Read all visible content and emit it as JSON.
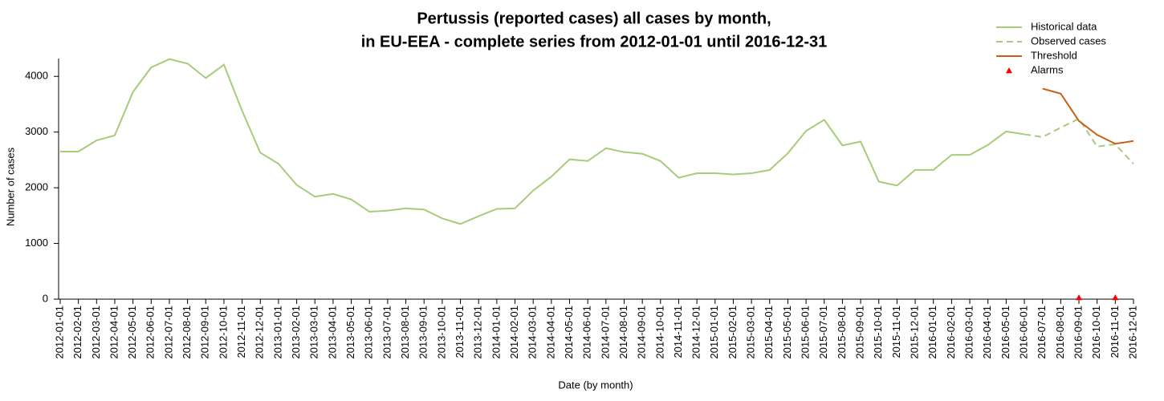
{
  "chart_data": {
    "type": "line",
    "title": [
      "Pertussis (reported cases) all cases by month,",
      "in EU-EEA - complete series from 2012-01-01 until 2016-12-31"
    ],
    "xlabel": "Date (by month)",
    "ylabel": "Number of cases",
    "categories": [
      "2012-01-01",
      "2012-02-01",
      "2012-03-01",
      "2012-04-01",
      "2012-05-01",
      "2012-06-01",
      "2012-07-01",
      "2012-08-01",
      "2012-09-01",
      "2012-10-01",
      "2012-11-01",
      "2012-12-01",
      "2013-01-01",
      "2013-02-01",
      "2013-03-01",
      "2013-04-01",
      "2013-05-01",
      "2013-06-01",
      "2013-07-01",
      "2013-08-01",
      "2013-09-01",
      "2013-10-01",
      "2013-11-01",
      "2013-12-01",
      "2014-01-01",
      "2014-02-01",
      "2014-03-01",
      "2014-04-01",
      "2014-05-01",
      "2014-06-01",
      "2014-07-01",
      "2014-08-01",
      "2014-09-01",
      "2014-10-01",
      "2014-11-01",
      "2014-12-01",
      "2015-01-01",
      "2015-02-01",
      "2015-03-01",
      "2015-04-01",
      "2015-05-01",
      "2015-06-01",
      "2015-07-01",
      "2015-08-01",
      "2015-09-01",
      "2015-10-01",
      "2015-11-01",
      "2015-12-01",
      "2016-01-01",
      "2016-02-01",
      "2016-03-01",
      "2016-04-01",
      "2016-05-01",
      "2016-06-01",
      "2016-07-01",
      "2016-08-01",
      "2016-09-01",
      "2016-10-01",
      "2016-11-01",
      "2016-12-01"
    ],
    "series": [
      {
        "name": "Historical data",
        "color": "#a6cc7a",
        "style": "solid",
        "values": [
          2650,
          2650,
          2850,
          2940,
          3720,
          4160,
          4310,
          4230,
          3970,
          4210,
          3380,
          2630,
          2430,
          2050,
          1840,
          1890,
          1790,
          1570,
          1590,
          1630,
          1610,
          1450,
          1350,
          1490,
          1620,
          1630,
          1950,
          2200,
          2510,
          2480,
          2710,
          2640,
          2610,
          2480,
          2180,
          2260,
          2260,
          2240,
          2260,
          2320,
          2620,
          3020,
          3220,
          2760,
          2830,
          2110,
          2040,
          2320,
          2320,
          2590,
          2590,
          2770,
          3010,
          2960,
          null,
          null,
          null,
          null,
          null,
          null
        ]
      },
      {
        "name": "Observed cases",
        "color": "#a6cc7a",
        "style": "dashed",
        "values": [
          null,
          null,
          null,
          null,
          null,
          null,
          null,
          null,
          null,
          null,
          null,
          null,
          null,
          null,
          null,
          null,
          null,
          null,
          null,
          null,
          null,
          null,
          null,
          null,
          null,
          null,
          null,
          null,
          null,
          null,
          null,
          null,
          null,
          null,
          null,
          null,
          null,
          null,
          null,
          null,
          null,
          null,
          null,
          null,
          null,
          null,
          null,
          null,
          null,
          null,
          null,
          null,
          null,
          2960,
          2910,
          3080,
          3240,
          2740,
          2780,
          2430
        ]
      },
      {
        "name": "Threshold",
        "color": "#c8601a",
        "style": "solid",
        "values": [
          null,
          null,
          null,
          null,
          null,
          null,
          null,
          null,
          null,
          null,
          null,
          null,
          null,
          null,
          null,
          null,
          null,
          null,
          null,
          null,
          null,
          null,
          null,
          null,
          null,
          null,
          null,
          null,
          null,
          null,
          null,
          null,
          null,
          null,
          null,
          null,
          null,
          null,
          null,
          null,
          null,
          null,
          null,
          null,
          null,
          null,
          null,
          null,
          null,
          null,
          null,
          null,
          null,
          null,
          3780,
          3690,
          3200,
          2950,
          2790,
          2840
        ]
      },
      {
        "name": "Alarms",
        "color": "#ff0000",
        "style": "markers",
        "values": [
          null,
          null,
          null,
          null,
          null,
          null,
          null,
          null,
          null,
          null,
          null,
          null,
          null,
          null,
          null,
          null,
          null,
          null,
          null,
          null,
          null,
          null,
          null,
          null,
          null,
          null,
          null,
          null,
          null,
          null,
          null,
          null,
          null,
          null,
          null,
          null,
          null,
          null,
          null,
          null,
          null,
          null,
          null,
          null,
          null,
          null,
          null,
          null,
          null,
          null,
          null,
          null,
          null,
          null,
          null,
          null,
          0,
          null,
          0,
          null
        ]
      }
    ],
    "ylim": [
      0,
      4320
    ],
    "yticks": [
      0,
      1000,
      2000,
      3000,
      4000
    ],
    "legend": "top-right"
  }
}
